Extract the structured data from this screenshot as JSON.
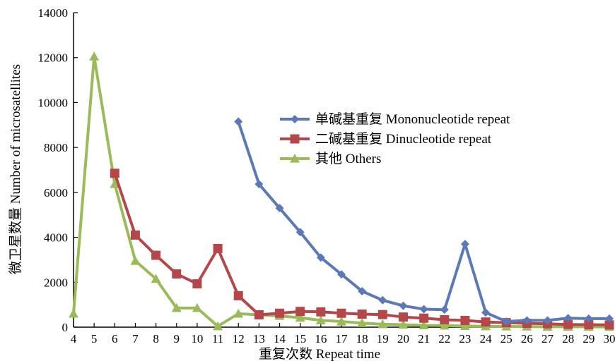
{
  "chart_data": {
    "type": "line",
    "title": "",
    "xlabel": "重复次数 Repeat time",
    "ylabel": "微卫星数量 Number of microsatellites",
    "x": [
      4,
      5,
      6,
      7,
      8,
      9,
      10,
      11,
      12,
      13,
      14,
      15,
      16,
      17,
      18,
      19,
      20,
      21,
      22,
      23,
      24,
      25,
      26,
      27,
      28,
      29,
      30
    ],
    "xlim": [
      4,
      30
    ],
    "ylim": [
      0,
      14000
    ],
    "yticks": [
      0,
      2000,
      4000,
      6000,
      8000,
      10000,
      12000,
      14000
    ],
    "legend_position": "center-right",
    "grid": false,
    "series": [
      {
        "name": "单碱基重复 Mononucleotide repeat",
        "color": "#5B78B8",
        "marker": "diamond",
        "points": [
          [
            12,
            9150
          ],
          [
            13,
            6370
          ],
          [
            14,
            5300
          ],
          [
            15,
            4230
          ],
          [
            16,
            3100
          ],
          [
            17,
            2350
          ],
          [
            18,
            1600
          ],
          [
            19,
            1200
          ],
          [
            20,
            950
          ],
          [
            21,
            800
          ],
          [
            22,
            780
          ],
          [
            23,
            3700
          ],
          [
            24,
            650
          ],
          [
            25,
            250
          ],
          [
            26,
            300
          ],
          [
            27,
            300
          ],
          [
            28,
            400
          ],
          [
            29,
            380
          ],
          [
            30,
            380
          ]
        ]
      },
      {
        "name": "二碱基重复 Dinucleotide repeat",
        "color": "#B5474A",
        "marker": "square",
        "points": [
          [
            6,
            6850
          ],
          [
            7,
            4100
          ],
          [
            8,
            3200
          ],
          [
            9,
            2370
          ],
          [
            10,
            1930
          ],
          [
            11,
            3500
          ],
          [
            12,
            1400
          ],
          [
            13,
            550
          ],
          [
            14,
            620
          ],
          [
            15,
            700
          ],
          [
            16,
            680
          ],
          [
            17,
            620
          ],
          [
            18,
            580
          ],
          [
            19,
            560
          ],
          [
            20,
            450
          ],
          [
            21,
            400
          ],
          [
            22,
            330
          ],
          [
            23,
            300
          ],
          [
            24,
            230
          ],
          [
            25,
            200
          ],
          [
            26,
            170
          ],
          [
            27,
            150
          ],
          [
            28,
            120
          ],
          [
            29,
            110
          ],
          [
            30,
            100
          ]
        ]
      },
      {
        "name": "其他 Others",
        "color": "#9BBB59",
        "marker": "triangle",
        "points": [
          [
            4,
            600
          ],
          [
            5,
            12050
          ],
          [
            6,
            6370
          ],
          [
            7,
            2950
          ],
          [
            8,
            2150
          ],
          [
            9,
            850
          ],
          [
            10,
            850
          ],
          [
            11,
            40
          ],
          [
            12,
            600
          ],
          [
            13,
            550
          ],
          [
            14,
            500
          ],
          [
            15,
            420
          ],
          [
            16,
            300
          ],
          [
            17,
            250
          ],
          [
            18,
            180
          ],
          [
            19,
            130
          ],
          [
            20,
            110
          ],
          [
            21,
            80
          ],
          [
            22,
            70
          ],
          [
            23,
            50
          ],
          [
            24,
            40
          ],
          [
            25,
            30
          ],
          [
            26,
            25
          ],
          [
            27,
            20
          ],
          [
            28,
            20
          ],
          [
            29,
            15
          ],
          [
            30,
            10
          ]
        ]
      }
    ]
  }
}
